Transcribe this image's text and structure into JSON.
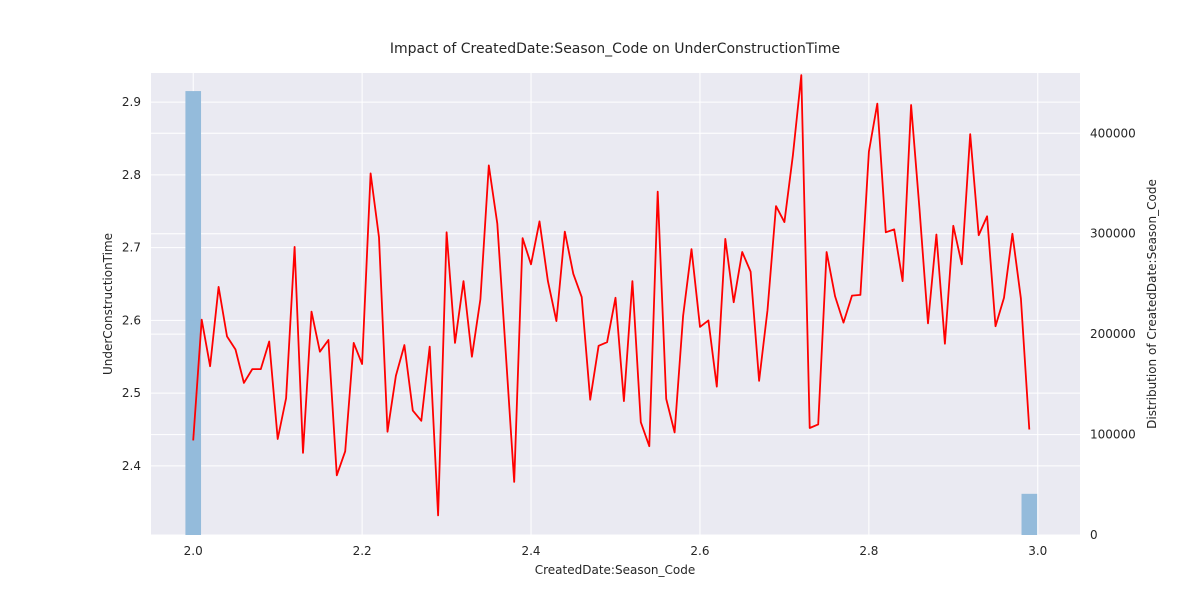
{
  "chart_data": {
    "type": "line",
    "title": "Impact of CreatedDate:Season_Code on UnderConstructionTime",
    "xlabel": "CreatedDate:Season_Code",
    "ylabel": "UnderConstructionTime",
    "y2label": "Distribution of CreatedDate:Season_Code",
    "xlim": [
      1.95,
      3.05
    ],
    "ylim": [
      2.305,
      2.94
    ],
    "y2lim": [
      0,
      460000
    ],
    "xticks": [
      "2.0",
      "2.2",
      "2.4",
      "2.6",
      "2.8",
      "3.0"
    ],
    "yticks": [
      "2.4",
      "2.5",
      "2.6",
      "2.7",
      "2.8",
      "2.9"
    ],
    "y2ticks": [
      "0",
      "100000",
      "200000",
      "300000",
      "400000"
    ],
    "grid": true,
    "line_color": "#ff0000",
    "bar_color": "#94bbdb",
    "background_color": "#eaeaf2",
    "series": [
      {
        "x": [
          2.0,
          2.01,
          2.02,
          2.03,
          2.04,
          2.05,
          2.06,
          2.07,
          2.08,
          2.09,
          2.1,
          2.11,
          2.12,
          2.13,
          2.14,
          2.15,
          2.16,
          2.17,
          2.18,
          2.19,
          2.2,
          2.21,
          2.22,
          2.23,
          2.24,
          2.25,
          2.26,
          2.27,
          2.28,
          2.29,
          2.3,
          2.31,
          2.32,
          2.33,
          2.34,
          2.35,
          2.36,
          2.37,
          2.38,
          2.39,
          2.4,
          2.41,
          2.42,
          2.43,
          2.44,
          2.45,
          2.46,
          2.47,
          2.48,
          2.49,
          2.5,
          2.51,
          2.52,
          2.53,
          2.54,
          2.55,
          2.56,
          2.57,
          2.58,
          2.59,
          2.6,
          2.61,
          2.62,
          2.63,
          2.64,
          2.65,
          2.66,
          2.67,
          2.68,
          2.69,
          2.7,
          2.71,
          2.72,
          2.73,
          2.74,
          2.75,
          2.76,
          2.77,
          2.78,
          2.79,
          2.8,
          2.81,
          2.82,
          2.83,
          2.84,
          2.85,
          2.86,
          2.87,
          2.88,
          2.89,
          2.9,
          2.91,
          2.92,
          2.93,
          2.94,
          2.95,
          2.96,
          2.97,
          2.98,
          2.99
        ],
        "values": [
          2.435,
          2.601,
          2.537,
          2.646,
          2.578,
          2.56,
          2.514,
          2.533,
          2.533,
          2.571,
          2.437,
          2.493,
          2.701,
          2.418,
          2.612,
          2.557,
          2.573,
          2.387,
          2.42,
          2.569,
          2.54,
          2.802,
          2.714,
          2.447,
          2.524,
          2.566,
          2.476,
          2.462,
          2.564,
          2.332,
          2.721,
          2.569,
          2.654,
          2.55,
          2.629,
          2.813,
          2.733,
          2.557,
          2.378,
          2.713,
          2.677,
          2.736,
          2.654,
          2.599,
          2.722,
          2.664,
          2.632,
          2.491,
          2.565,
          2.57,
          2.631,
          2.489,
          2.654,
          2.46,
          2.427,
          2.777,
          2.492,
          2.446,
          2.606,
          2.698,
          2.591,
          2.6,
          2.509,
          2.712,
          2.625,
          2.694,
          2.667,
          2.517,
          2.614,
          2.757,
          2.735,
          2.827,
          2.937,
          2.452,
          2.457,
          2.694,
          2.633,
          2.597,
          2.634,
          2.635,
          2.832,
          2.898,
          2.721,
          2.725,
          2.654,
          2.896,
          2.753,
          2.596,
          2.718,
          2.568,
          2.73,
          2.677,
          2.856,
          2.717,
          2.743,
          2.592,
          2.631,
          2.719,
          2.63,
          2.45
        ]
      }
    ],
    "distribution": [
      {
        "x": 2.0,
        "count": 442000
      },
      {
        "x": 2.99,
        "count": 41000
      }
    ]
  }
}
